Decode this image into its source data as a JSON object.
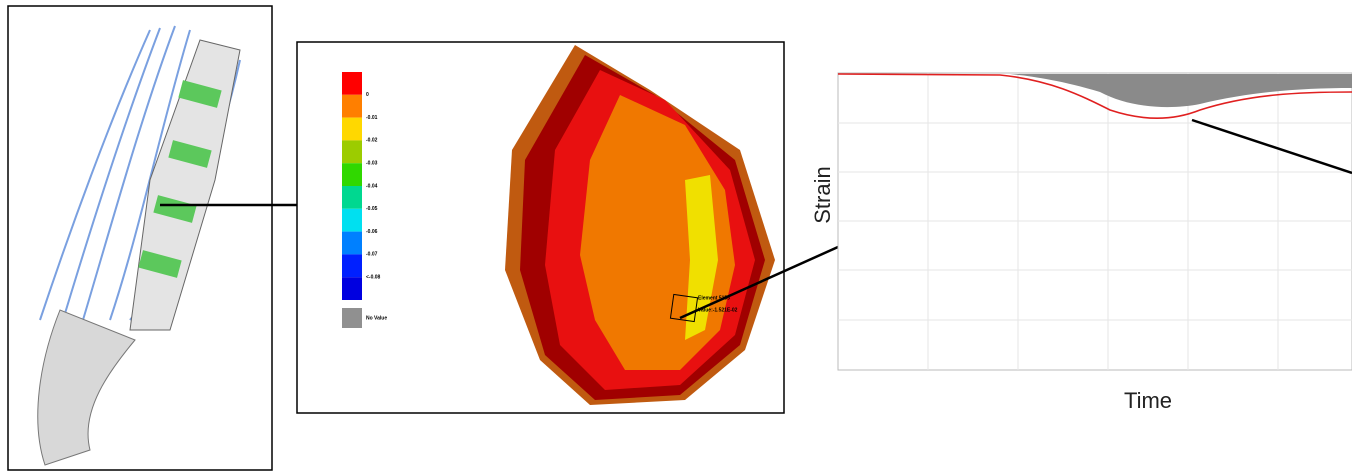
{
  "legend": {
    "labels": [
      "0",
      "-0.01",
      "-0.02",
      "-0.03",
      "-0.04",
      "-0.05",
      "-0.06",
      "-0.07",
      "<-0.08"
    ],
    "no_value": "No Value"
  },
  "probe": {
    "element": "Element 5155",
    "value": "Value:-1.521E-02"
  },
  "plot": {
    "y_label": "Strain",
    "x_label": "Time"
  }
}
